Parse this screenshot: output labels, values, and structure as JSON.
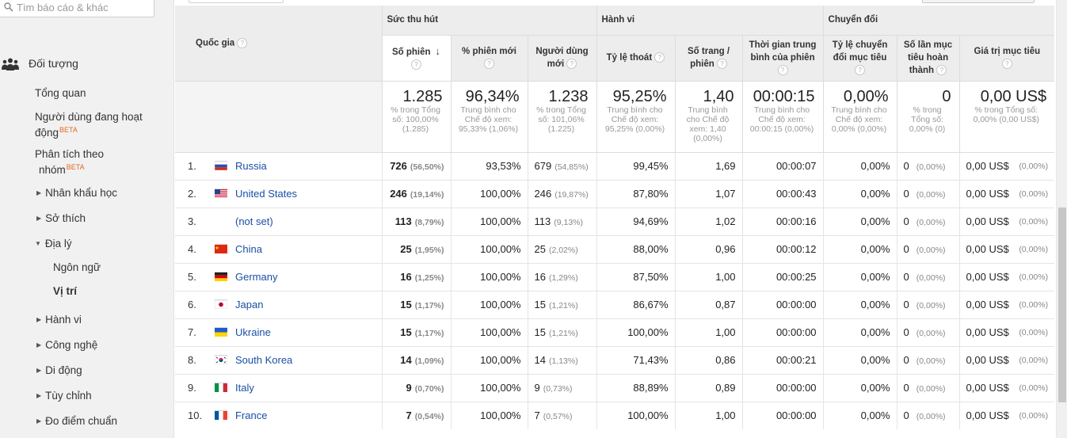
{
  "search": {
    "placeholder": "Tìm báo cáo & khác"
  },
  "sidebar": {
    "section": "Đối tượng",
    "items": [
      {
        "label": "Tổng quan",
        "beta": "",
        "caret": ""
      },
      {
        "label": "Người dùng đang hoạt",
        "label2": "động",
        "beta": "BETA",
        "caret": ""
      },
      {
        "label": "Phân tích theo",
        "label2": "nhóm",
        "beta": "BETA",
        "caret": ""
      },
      {
        "label": "Nhân khẩu học",
        "caret": "▶"
      },
      {
        "label": "Sở thích",
        "caret": "▶"
      },
      {
        "label": "Địa lý",
        "caret": "▼"
      },
      {
        "label": "Ngôn ngữ"
      },
      {
        "label": "Vị trí"
      },
      {
        "label": "Hành vi",
        "caret": "▶"
      },
      {
        "label": "Công nghệ",
        "caret": "▶"
      },
      {
        "label": "Di động",
        "caret": "▶"
      },
      {
        "label": "Tùy chỉnh",
        "caret": "▶"
      },
      {
        "label": "Đo điểm chuẩn",
        "caret": "▶"
      }
    ]
  },
  "table": {
    "country_header": "Quốc gia",
    "groups": {
      "acquisition": "Sức thu hút",
      "behavior": "Hành vi",
      "conversion": "Chuyển đổi"
    },
    "columns": {
      "sessions": "Số phiên",
      "new_sessions_pct": "% phiên mới",
      "new_users_1": "Người dùng",
      "new_users_2": "mới",
      "bounce_rate": "Tỷ lệ thoát",
      "pages_1": "Số trang /",
      "pages_2": "phiên",
      "duration_1": "Thời gian trung",
      "duration_2": "bình của phiên",
      "conv_rate_1": "Tỷ lệ chuyển",
      "conv_rate_2": "đổi mục tiêu",
      "goal_compl_1": "Số lần mục",
      "goal_compl_2": "tiêu hoàn",
      "goal_compl_3": "thành",
      "goal_value": "Giá trị mục tiêu"
    },
    "totals": {
      "sessions": {
        "value": "1.285",
        "sub": [
          "% trong Tổng",
          "số: 100,00%",
          "(1.285)"
        ]
      },
      "new_sessions_pct": {
        "value": "96,34%",
        "sub": [
          "Trung bình cho",
          "Chế độ xem:",
          "95,33% (1,06%)"
        ]
      },
      "new_users": {
        "value": "1.238",
        "sub": [
          "% trong Tổng",
          "số: 101,06%",
          "(1.225)"
        ]
      },
      "bounce_rate": {
        "value": "95,25%",
        "sub": [
          "Trung bình cho",
          "Chế độ xem:",
          "95,25% (0,00%)"
        ]
      },
      "pages": {
        "value": "1,40",
        "sub": [
          "Trung bình",
          "cho Chế độ",
          "xem: 1,40",
          "(0,00%)"
        ]
      },
      "duration": {
        "value": "00:00:15",
        "sub": [
          "Trung bình cho",
          "Chế độ xem:",
          "00:00:15 (0,00%)"
        ]
      },
      "conv_rate": {
        "value": "0,00%",
        "sub": [
          "Trung bình cho",
          "Chế độ xem:",
          "0,00% (0,00%)"
        ]
      },
      "goal_compl": {
        "value": "0",
        "sub": [
          "% trong",
          "Tổng số:",
          "0,00% (0)"
        ]
      },
      "goal_value": {
        "value": "0,00 US$",
        "sub": [
          "% trong Tổng số:",
          "0,00% (0,00 US$)"
        ]
      }
    },
    "rows": [
      {
        "idx": "1.",
        "flag": "russia-flag",
        "country": "Russia",
        "sessions": "726",
        "sessions_pct": "(56,50%)",
        "new_pct": "93,53%",
        "new_users": "679",
        "new_users_pct": "(54,85%)",
        "bounce": "99,45%",
        "pages": "1,69",
        "duration": "00:00:07",
        "conv": "0,00%",
        "goal": "0",
        "goal_pct": "(0,00%)",
        "value": "0,00 US$",
        "value_pct": "(0,00%)"
      },
      {
        "idx": "2.",
        "flag": "usa-flag",
        "country": "United States",
        "sessions": "246",
        "sessions_pct": "(19,14%)",
        "new_pct": "100,00%",
        "new_users": "246",
        "new_users_pct": "(19,87%)",
        "bounce": "87,80%",
        "pages": "1,07",
        "duration": "00:00:43",
        "conv": "0,00%",
        "goal": "0",
        "goal_pct": "(0,00%)",
        "value": "0,00 US$",
        "value_pct": "(0,00%)"
      },
      {
        "idx": "3.",
        "flag": "",
        "country": "(not set)",
        "sessions": "113",
        "sessions_pct": "(8,79%)",
        "new_pct": "100,00%",
        "new_users": "113",
        "new_users_pct": "(9,13%)",
        "bounce": "94,69%",
        "pages": "1,02",
        "duration": "00:00:16",
        "conv": "0,00%",
        "goal": "0",
        "goal_pct": "(0,00%)",
        "value": "0,00 US$",
        "value_pct": "(0,00%)"
      },
      {
        "idx": "4.",
        "flag": "china-flag",
        "country": "China",
        "sessions": "25",
        "sessions_pct": "(1,95%)",
        "new_pct": "100,00%",
        "new_users": "25",
        "new_users_pct": "(2,02%)",
        "bounce": "88,00%",
        "pages": "0,96",
        "duration": "00:00:12",
        "conv": "0,00%",
        "goal": "0",
        "goal_pct": "(0,00%)",
        "value": "0,00 US$",
        "value_pct": "(0,00%)"
      },
      {
        "idx": "5.",
        "flag": "germany-flag",
        "country": "Germany",
        "sessions": "16",
        "sessions_pct": "(1,25%)",
        "new_pct": "100,00%",
        "new_users": "16",
        "new_users_pct": "(1,29%)",
        "bounce": "87,50%",
        "pages": "1,00",
        "duration": "00:00:25",
        "conv": "0,00%",
        "goal": "0",
        "goal_pct": "(0,00%)",
        "value": "0,00 US$",
        "value_pct": "(0,00%)"
      },
      {
        "idx": "6.",
        "flag": "japan-flag",
        "country": "Japan",
        "sessions": "15",
        "sessions_pct": "(1,17%)",
        "new_pct": "100,00%",
        "new_users": "15",
        "new_users_pct": "(1,21%)",
        "bounce": "86,67%",
        "pages": "0,87",
        "duration": "00:00:00",
        "conv": "0,00%",
        "goal": "0",
        "goal_pct": "(0,00%)",
        "value": "0,00 US$",
        "value_pct": "(0,00%)"
      },
      {
        "idx": "7.",
        "flag": "ukraine-flag",
        "country": "Ukraine",
        "sessions": "15",
        "sessions_pct": "(1,17%)",
        "new_pct": "100,00%",
        "new_users": "15",
        "new_users_pct": "(1,21%)",
        "bounce": "100,00%",
        "pages": "1,00",
        "duration": "00:00:00",
        "conv": "0,00%",
        "goal": "0",
        "goal_pct": "(0,00%)",
        "value": "0,00 US$",
        "value_pct": "(0,00%)"
      },
      {
        "idx": "8.",
        "flag": "south-korea-flag",
        "country": "South Korea",
        "sessions": "14",
        "sessions_pct": "(1,09%)",
        "new_pct": "100,00%",
        "new_users": "14",
        "new_users_pct": "(1,13%)",
        "bounce": "71,43%",
        "pages": "0,86",
        "duration": "00:00:21",
        "conv": "0,00%",
        "goal": "0",
        "goal_pct": "(0,00%)",
        "value": "0,00 US$",
        "value_pct": "(0,00%)"
      },
      {
        "idx": "9.",
        "flag": "italy-flag",
        "country": "Italy",
        "sessions": "9",
        "sessions_pct": "(0,70%)",
        "new_pct": "100,00%",
        "new_users": "9",
        "new_users_pct": "(0,73%)",
        "bounce": "88,89%",
        "pages": "0,89",
        "duration": "00:00:00",
        "conv": "0,00%",
        "goal": "0",
        "goal_pct": "(0,00%)",
        "value": "0,00 US$",
        "value_pct": "(0,00%)"
      },
      {
        "idx": "10.",
        "flag": "france-flag",
        "country": "France",
        "sessions": "7",
        "sessions_pct": "(0,54%)",
        "new_pct": "100,00%",
        "new_users": "7",
        "new_users_pct": "(0,57%)",
        "bounce": "100,00%",
        "pages": "1,00",
        "duration": "00:00:00",
        "conv": "0,00%",
        "goal": "0",
        "goal_pct": "(0,00%)",
        "value": "0,00 US$",
        "value_pct": "(0,00%)"
      }
    ]
  },
  "colors": {
    "link": "#1a4fa5",
    "beta": "#e06a21",
    "header_bg": "#ededed",
    "sidebar_bg": "#f1f1f1"
  }
}
